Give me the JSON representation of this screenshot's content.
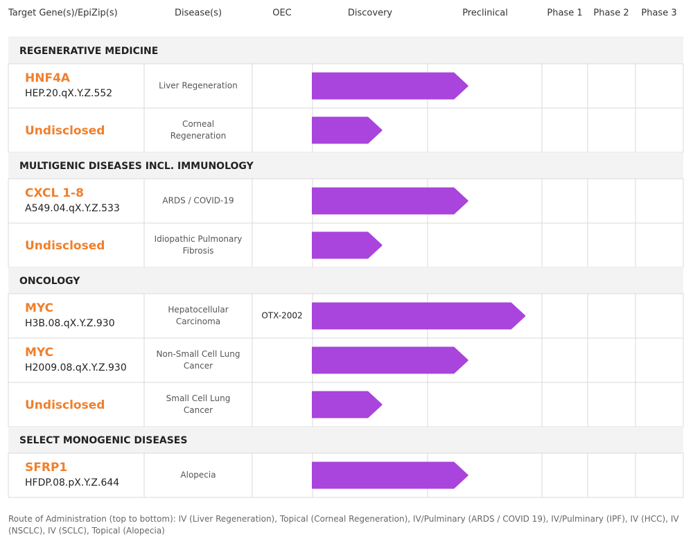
{
  "theme": {
    "accent": "#F07F2B",
    "bar": "#A944DC",
    "grid": "#D9D9D9",
    "section_bg": "#F3F3F3",
    "header_text": "#333333",
    "disease_text": "#555555"
  },
  "chart_data": {
    "type": "table",
    "columns": [
      "Target Gene(s)/EpiZip(s)",
      "Disease(s)",
      "OEC",
      "Discovery",
      "Preclinical",
      "Phase 1",
      "Phase 2",
      "Phase 3"
    ],
    "stages": [
      "Discovery",
      "Preclinical",
      "Phase 1",
      "Phase 2",
      "Phase 3"
    ],
    "sections": [
      {
        "title": "REGENERATIVE MEDICINE",
        "rows": [
          {
            "gene": "HNF4A",
            "epizip": "HEP.20.qX.Y.Z.552",
            "disease": [
              "Liver Regeneration"
            ],
            "oec": "",
            "progress": 1.35
          },
          {
            "gene": "Undisclosed",
            "epizip": "",
            "disease": [
              "Corneal",
              "Regeneration"
            ],
            "oec": "",
            "progress": 0.6
          }
        ]
      },
      {
        "title": "MULTIGENIC DISEASES INCL. IMMUNOLOGY",
        "rows": [
          {
            "gene": "CXCL 1-8",
            "epizip": "A549.04.qX.Y.Z.533",
            "disease": [
              "ARDS / COVID-19"
            ],
            "oec": "",
            "progress": 1.35
          },
          {
            "gene": "Undisclosed",
            "epizip": "",
            "disease": [
              "Idiopathic Pulmonary",
              "Fibrosis"
            ],
            "oec": "",
            "progress": 0.6
          }
        ]
      },
      {
        "title": "ONCOLOGY",
        "rows": [
          {
            "gene": "MYC",
            "epizip": "H3B.08.qX.Y.Z.930",
            "disease": [
              "Hepatocellular",
              "Carcinoma"
            ],
            "oec": "OTX-2002",
            "progress": 1.85
          },
          {
            "gene": "MYC",
            "epizip": "H2009.08.qX.Y.Z.930",
            "disease": [
              "Non-Small Cell Lung",
              "Cancer"
            ],
            "oec": "",
            "progress": 1.35
          },
          {
            "gene": "Undisclosed",
            "epizip": "",
            "disease": [
              "Small Cell Lung",
              "Cancer"
            ],
            "oec": "",
            "progress": 0.6
          }
        ]
      },
      {
        "title": "SELECT MONOGENIC DISEASES",
        "rows": [
          {
            "gene": "SFRP1",
            "epizip": "HFDP.08.pX.Y.Z.644",
            "disease": [
              "Alopecia"
            ],
            "oec": "",
            "progress": 1.35
          }
        ]
      }
    ]
  },
  "footnote": "Route of Administration (top to bottom): IV (Liver Regeneration), Topical (Corneal Regeneration), IV/Pulminary (ARDS / COVID 19), IV/Pulminary (IPF), IV (HCC), IV (NSCLC), IV (SCLC), Topical (Alopecia)"
}
